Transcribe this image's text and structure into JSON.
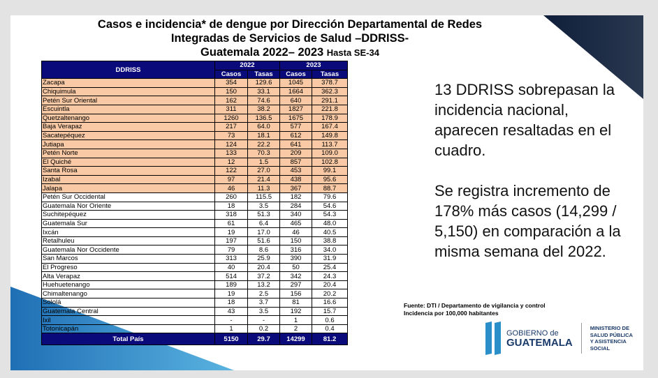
{
  "title": {
    "line1": "Casos e incidencia* de dengue por Dirección Departamental de Redes",
    "line2": "Integradas de Servicios de Salud –DDRISS-",
    "line3": "Guatemala  2022– 2023",
    "line3_suffix": "Hasta SE-34"
  },
  "table": {
    "header": {
      "name": "DDRISS",
      "year1": "2022",
      "year2": "2023",
      "casos": "Casos",
      "tasas": "Tasas"
    },
    "rows": [
      {
        "name": "Zacapa",
        "c22": "354",
        "t22": "129.6",
        "c23": "1045",
        "t23": "378.7",
        "hl": true
      },
      {
        "name": "Chiquimula",
        "c22": "150",
        "t22": "33.1",
        "c23": "1664",
        "t23": "362.3",
        "hl": true
      },
      {
        "name": "Petén Sur Oriental",
        "c22": "162",
        "t22": "74.6",
        "c23": "640",
        "t23": "291.1",
        "hl": true
      },
      {
        "name": "Escuintla",
        "c22": "311",
        "t22": "38.2",
        "c23": "1827",
        "t23": "221.8",
        "hl": true
      },
      {
        "name": "Quetzaltenango",
        "c22": "1260",
        "t22": "136.5",
        "c23": "1675",
        "t23": "178.9",
        "hl": true
      },
      {
        "name": "Baja Verapaz",
        "c22": "217",
        "t22": "64.0",
        "c23": "577",
        "t23": "167.4",
        "hl": true
      },
      {
        "name": "Sacatepéquez",
        "c22": "73",
        "t22": "18.1",
        "c23": "612",
        "t23": "149.8",
        "hl": true
      },
      {
        "name": "Jutiapa",
        "c22": "124",
        "t22": "22.2",
        "c23": "641",
        "t23": "113.7",
        "hl": true
      },
      {
        "name": "Petén Norte",
        "c22": "133",
        "t22": "70.3",
        "c23": "209",
        "t23": "109.0",
        "hl": true
      },
      {
        "name": "El Quiché",
        "c22": "12",
        "t22": "1.5",
        "c23": "857",
        "t23": "102.8",
        "hl": true
      },
      {
        "name": "Santa Rosa",
        "c22": "122",
        "t22": "27.0",
        "c23": "453",
        "t23": "99.1",
        "hl": true
      },
      {
        "name": "Izabal",
        "c22": "97",
        "t22": "21.4",
        "c23": "438",
        "t23": "95.6",
        "hl": true
      },
      {
        "name": "Jalapa",
        "c22": "46",
        "t22": "11.3",
        "c23": "367",
        "t23": "88.7",
        "hl": true
      },
      {
        "name": "Petén Sur Occidental",
        "c22": "260",
        "t22": "115.5",
        "c23": "182",
        "t23": "79.6"
      },
      {
        "name": "Guatemala Nor Oriente",
        "c22": "18",
        "t22": "3.5",
        "c23": "284",
        "t23": "54.6"
      },
      {
        "name": "Suchitepéquez",
        "c22": "318",
        "t22": "51.3",
        "c23": "340",
        "t23": "54.3"
      },
      {
        "name": "Guatemala Sur",
        "c22": "61",
        "t22": "6.4",
        "c23": "465",
        "t23": "48.0"
      },
      {
        "name": "Ixcán",
        "c22": "19",
        "t22": "17.0",
        "c23": "46",
        "t23": "40.5"
      },
      {
        "name": "Retalhuleu",
        "c22": "197",
        "t22": "51.6",
        "c23": "150",
        "t23": "38.8"
      },
      {
        "name": "Guatemala Nor Occidente",
        "c22": "79",
        "t22": "8.6",
        "c23": "316",
        "t23": "34.0"
      },
      {
        "name": "San Marcos",
        "c22": "313",
        "t22": "25.9",
        "c23": "390",
        "t23": "31.9"
      },
      {
        "name": "El Progreso",
        "c22": "40",
        "t22": "20.4",
        "c23": "50",
        "t23": "25.4"
      },
      {
        "name": "Alta Verapaz",
        "c22": "514",
        "t22": "37.2",
        "c23": "342",
        "t23": "24.3"
      },
      {
        "name": "Huehuetenango",
        "c22": "189",
        "t22": "13.2",
        "c23": "297",
        "t23": "20.4"
      },
      {
        "name": "Chimaltenango",
        "c22": "19",
        "t22": "2.5",
        "c23": "156",
        "t23": "20.2"
      },
      {
        "name": "Sololá",
        "c22": "18",
        "t22": "3.7",
        "c23": "81",
        "t23": "16.6"
      },
      {
        "name": "Guatemala Central",
        "c22": "43",
        "t22": "3.5",
        "c23": "192",
        "t23": "15.7"
      },
      {
        "name": "Ixil",
        "c22": "-",
        "t22": "-",
        "c23": "1",
        "t23": "0.6"
      },
      {
        "name": "Totonicapán",
        "c22": "1",
        "t22": "0.2",
        "c23": "2",
        "t23": "0.4"
      }
    ],
    "total": {
      "name": "Total País",
      "c22": "5150",
      "t22": "29.7",
      "c23": "14299",
      "t23": "81.2"
    }
  },
  "message": {
    "p1": "13 DDRISS sobrepasan la incidencia nacional, aparecen resaltadas en el cuadro.",
    "p2": "Se registra incremento de 178% más casos (14,299 / 5,150) en comparación a la misma semana del 2022."
  },
  "source": {
    "line1": "Fuente: DTI / Departamento de vigilancia y control",
    "line2": "Incidencia por 100,000 habitantes"
  },
  "logo": {
    "gob_a": "GOBIERNO de",
    "gob_b": "GUATEMALA",
    "ministry": [
      "MINISTERIO DE",
      "SALUD PÚBLICA",
      "Y ASISTENCIA",
      "SOCIAL"
    ]
  },
  "colors": {
    "header": "#0a0a7a",
    "highlight": "#f8c9a4"
  }
}
